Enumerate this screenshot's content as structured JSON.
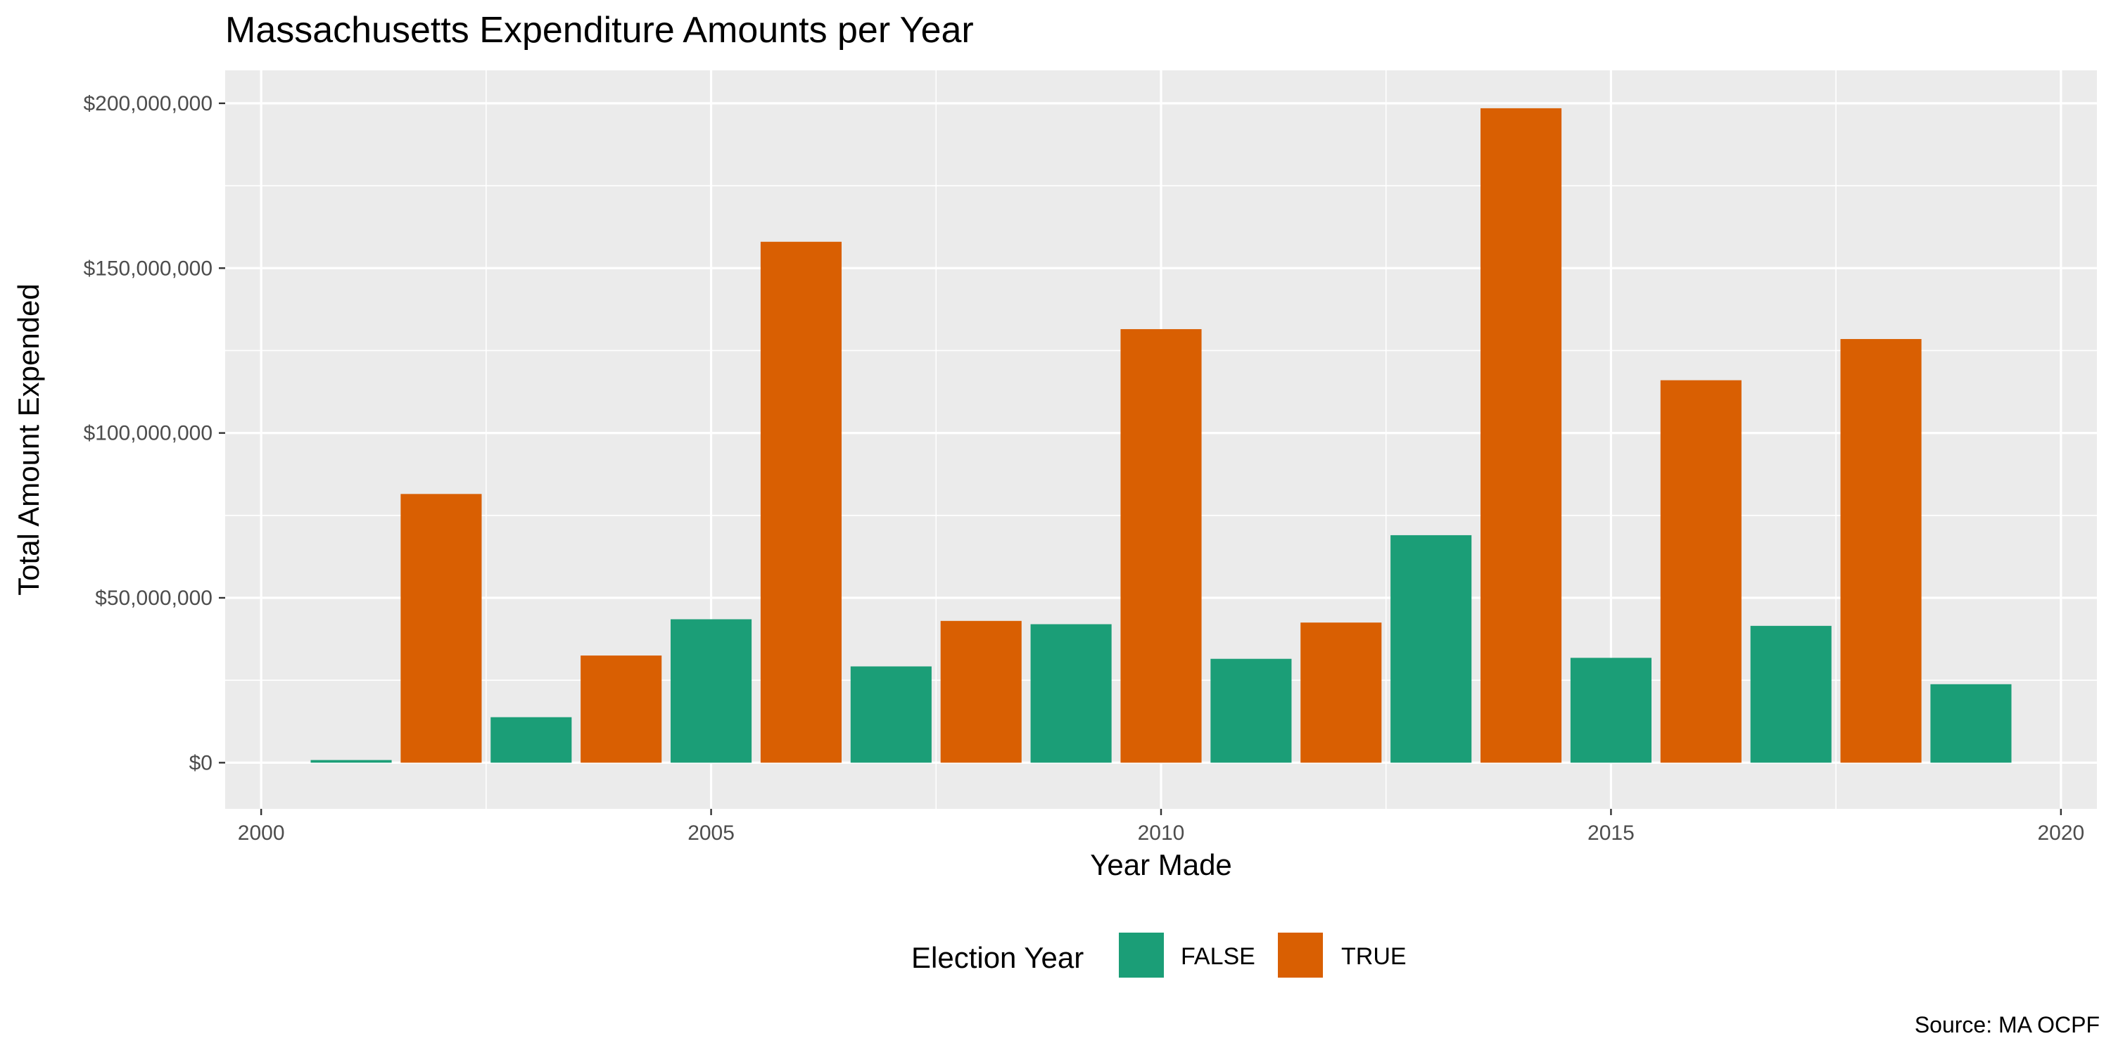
{
  "chart_data": {
    "type": "bar",
    "title": "Massachusetts Expenditure Amounts per Year",
    "xlabel": "Year Made",
    "ylabel": "Total Amount Expended",
    "caption": "Source: MA OCPF",
    "xlim": [
      1999.6,
      2020.4
    ],
    "ylim": [
      -14000000,
      210000000
    ],
    "x_ticks": [
      2000,
      2005,
      2010,
      2015,
      2020
    ],
    "x_tick_labels": [
      "2000",
      "2005",
      "2010",
      "2015",
      "2020"
    ],
    "y_ticks": [
      0,
      50000000,
      100000000,
      150000000,
      200000000
    ],
    "y_tick_labels": [
      "$0",
      "$50,000,000",
      "$100,000,000",
      "$150,000,000",
      "$200,000,000"
    ],
    "grid": true,
    "legend": {
      "title": "Election Year",
      "position": "bottom",
      "entries": [
        {
          "label": "FALSE",
          "color": "#1b9e77"
        },
        {
          "label": "TRUE",
          "color": "#d95f02"
        }
      ]
    },
    "bars": [
      {
        "year": 2001,
        "value": 800000,
        "group": "FALSE"
      },
      {
        "year": 2002,
        "value": 81500000,
        "group": "TRUE"
      },
      {
        "year": 2003,
        "value": 13800000,
        "group": "FALSE"
      },
      {
        "year": 2004,
        "value": 32500000,
        "group": "TRUE"
      },
      {
        "year": 2005,
        "value": 43500000,
        "group": "FALSE"
      },
      {
        "year": 2006,
        "value": 158000000,
        "group": "TRUE"
      },
      {
        "year": 2007,
        "value": 29200000,
        "group": "FALSE"
      },
      {
        "year": 2008,
        "value": 43000000,
        "group": "TRUE"
      },
      {
        "year": 2009,
        "value": 42000000,
        "group": "FALSE"
      },
      {
        "year": 2010,
        "value": 131500000,
        "group": "TRUE"
      },
      {
        "year": 2011,
        "value": 31500000,
        "group": "FALSE"
      },
      {
        "year": 2012,
        "value": 42500000,
        "group": "TRUE"
      },
      {
        "year": 2013,
        "value": 69000000,
        "group": "FALSE"
      },
      {
        "year": 2014,
        "value": 198500000,
        "group": "TRUE"
      },
      {
        "year": 2015,
        "value": 31800000,
        "group": "FALSE"
      },
      {
        "year": 2016,
        "value": 116000000,
        "group": "TRUE"
      },
      {
        "year": 2017,
        "value": 41500000,
        "group": "FALSE"
      },
      {
        "year": 2018,
        "value": 128500000,
        "group": "TRUE"
      },
      {
        "year": 2019,
        "value": 23800000,
        "group": "FALSE"
      }
    ]
  }
}
